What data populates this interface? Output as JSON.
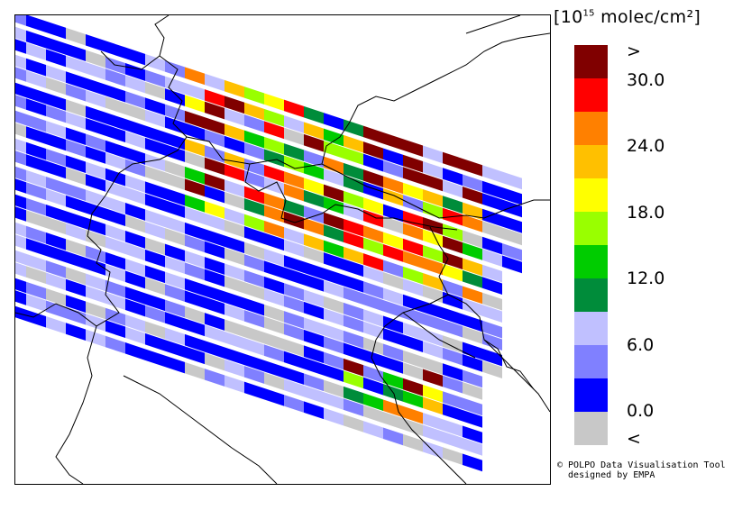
{
  "legend": {
    "title_prefix": "[10",
    "title_exponent": "15",
    "title_suffix": " molec/cm²]",
    "swatches": [
      {
        "color": "#800000"
      },
      {
        "color": "#ff0000"
      },
      {
        "color": "#ff8000"
      },
      {
        "color": "#ffc000"
      },
      {
        "color": "#ffff00"
      },
      {
        "color": "#99ff00"
      },
      {
        "color": "#00cc00"
      },
      {
        "color": "#008c3a"
      },
      {
        "color": "#c0c0ff"
      },
      {
        "color": "#8080ff"
      },
      {
        "color": "#0000ff"
      },
      {
        "color": "#c8c8c8"
      }
    ],
    "labels": [
      ">",
      "30.0",
      "24.0",
      "18.0",
      "12.0",
      "6.0",
      "0.0",
      "<"
    ]
  },
  "credit": {
    "line1": "© POLPO Data Visualisation Tool",
    "line2": "  designed by EMPA"
  },
  "grid": {
    "rows": [
      "DDDDDDDDD",
      "ABBAABAAA",
      "CCDCDDAAB",
      "BBCBBBBCE",
      "CCCCCBBCC",
      "ACCEAACBD",
      "CCCCCBABB",
      "DCCCCCBCB",
      "CCCCCCCCC",
      "DDDDDDDDD"
    ]
  }
}
